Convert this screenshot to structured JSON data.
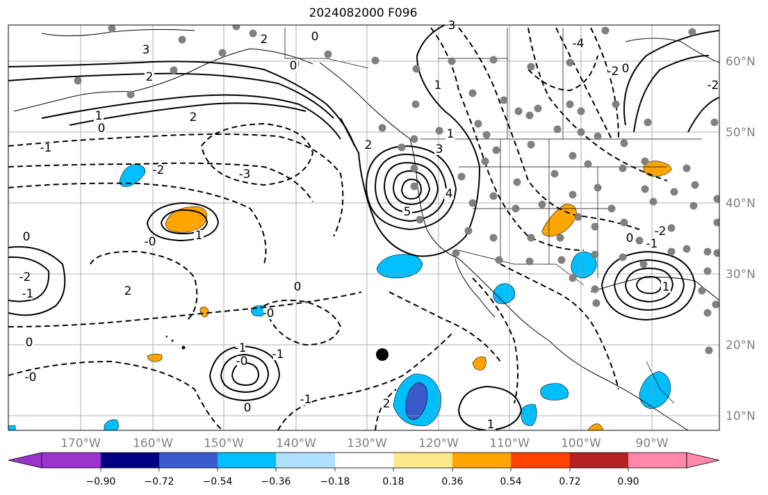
{
  "title": "2024082000 F096",
  "lat_labels": [
    "60°N",
    "50°N",
    "40°N",
    "30°N",
    "20°N",
    "10°N"
  ],
  "lon_labels": [
    "170°W",
    "160°W",
    "150°W",
    "140°W",
    "130°W",
    "120°W",
    "110°W",
    "100°W",
    "90°W"
  ],
  "colorbar": {
    "ticks": [
      "−0.90",
      "−0.72",
      "−0.54",
      "−0.36",
      "−0.18",
      "0.18",
      "0.36",
      "0.54",
      "0.72",
      "0.90"
    ],
    "colors": [
      "#9933cc",
      "#000080",
      "#3b5bcc",
      "#00bfff",
      "#aee0ff",
      "#ffffff",
      "#ffe88a",
      "#ffa500",
      "#ff4000",
      "#b22222",
      "#ff88aa"
    ]
  },
  "contour_labels": [
    "0",
    "3",
    "2",
    "0",
    "1",
    "-4",
    "3",
    "2",
    "1",
    "0",
    "2",
    "0",
    "-2",
    "-1",
    "-2",
    "-3",
    "2",
    "3",
    "4",
    "5",
    "0",
    "1",
    "-0",
    "-1",
    "-2",
    "2",
    "0",
    "1",
    "-0",
    "0",
    "-1",
    "-1",
    "-0",
    "-2",
    "-1",
    "2",
    "1",
    "0",
    "-0",
    "1",
    "-1",
    "-2",
    "0"
  ]
}
